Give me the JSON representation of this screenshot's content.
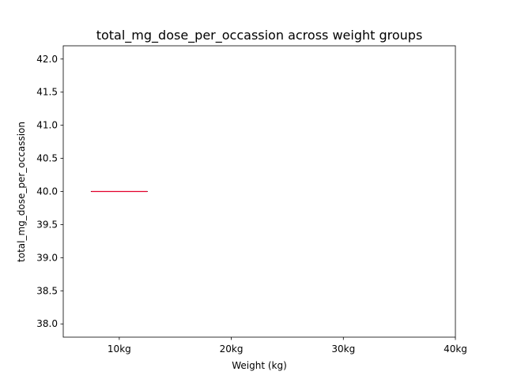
{
  "chart_data": {
    "type": "box",
    "title": "total_mg_dose_per_occassion across weight groups",
    "xlabel": "Weight (kg)",
    "ylabel": "total_mg_dose_per_occassion",
    "categories": [
      "10kg",
      "20kg",
      "30kg",
      "40kg"
    ],
    "x_positions": [
      1,
      2,
      3,
      4
    ],
    "xlim": [
      0.5,
      4.0
    ],
    "ylim": [
      37.8,
      42.2
    ],
    "yticks": [
      38.0,
      38.5,
      39.0,
      39.5,
      40.0,
      40.5,
      41.0,
      41.5,
      42.0
    ],
    "ytick_labels": [
      "38.0",
      "38.5",
      "39.0",
      "39.5",
      "40.0",
      "40.5",
      "41.0",
      "41.5",
      "42.0"
    ],
    "boxes": [
      {
        "category": "10kg",
        "position": 1,
        "min": 40.0,
        "q1": 40.0,
        "median": 40.0,
        "q3": 40.0,
        "max": 40.0
      }
    ],
    "colors": {
      "box": "#000000",
      "median": "#e4002b",
      "axis": "#000000"
    }
  }
}
